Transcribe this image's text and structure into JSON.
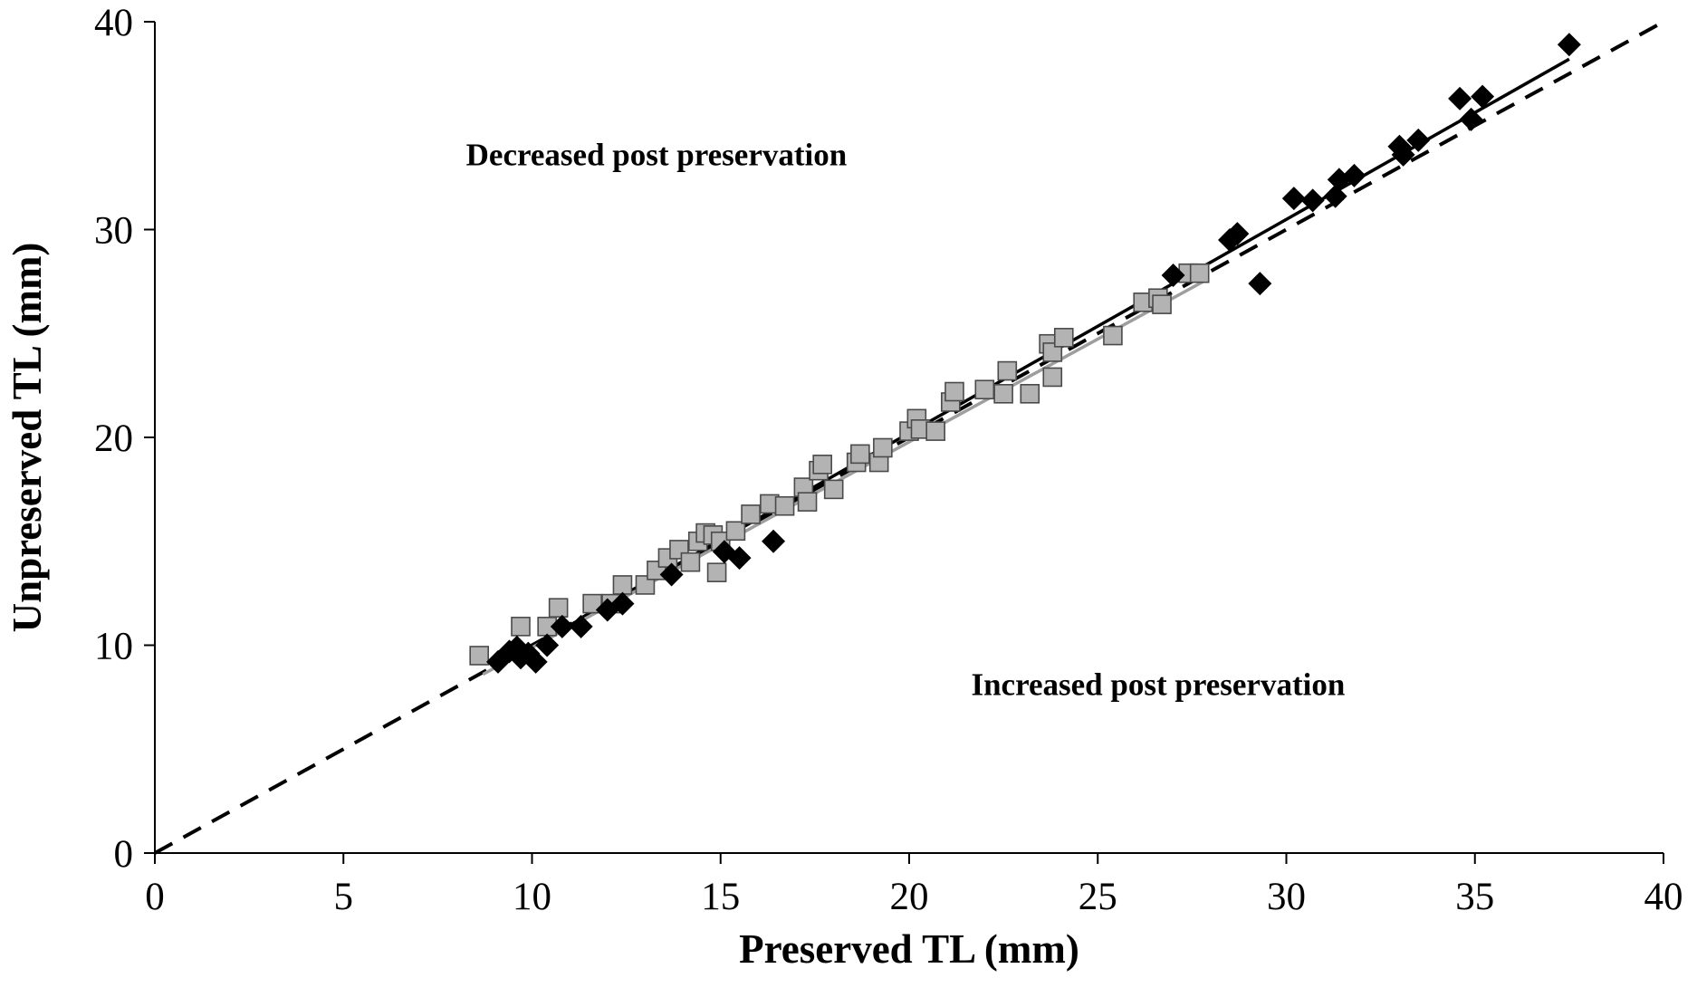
{
  "chart_data": {
    "type": "scatter",
    "xlabel": "Preserved TL (mm)",
    "ylabel": "Unpreserved TL (mm)",
    "xlim": [
      0,
      40
    ],
    "ylim": [
      0,
      40
    ],
    "xticks": [
      "0",
      "5",
      "10",
      "15",
      "20",
      "25",
      "30",
      "35",
      "40"
    ],
    "yticks": [
      "0",
      "10",
      "20",
      "30",
      "40"
    ],
    "grid": false,
    "legend": "none",
    "annotations": [
      {
        "text": "Decreased post preservation",
        "x": 13.3,
        "y": 33.1
      },
      {
        "text": "Increased post preservation",
        "x": 26.6,
        "y": 7.6
      }
    ],
    "series": [
      {
        "marker": "diamond",
        "color": "#000000",
        "points": [
          [
            9.1,
            9.2
          ],
          [
            9.4,
            9.7
          ],
          [
            9.6,
            9.9
          ],
          [
            9.7,
            9.4
          ],
          [
            9.9,
            9.6
          ],
          [
            10.1,
            9.2
          ],
          [
            10.4,
            10.0
          ],
          [
            10.8,
            10.9
          ],
          [
            11.3,
            10.9
          ],
          [
            12.0,
            11.7
          ],
          [
            12.4,
            12.0
          ],
          [
            13.7,
            13.4
          ],
          [
            15.1,
            14.5
          ],
          [
            15.5,
            14.2
          ],
          [
            16.4,
            15.0
          ],
          [
            27.0,
            27.8
          ],
          [
            28.5,
            29.5
          ],
          [
            28.7,
            29.8
          ],
          [
            29.3,
            27.4
          ],
          [
            30.2,
            31.5
          ],
          [
            30.7,
            31.4
          ],
          [
            31.3,
            31.6
          ],
          [
            31.4,
            32.4
          ],
          [
            31.8,
            32.6
          ],
          [
            33.0,
            34.0
          ],
          [
            33.1,
            33.6
          ],
          [
            33.5,
            34.3
          ],
          [
            34.6,
            36.3
          ],
          [
            34.9,
            35.3
          ],
          [
            35.2,
            36.4
          ],
          [
            37.5,
            38.9
          ]
        ]
      },
      {
        "marker": "square",
        "color": "#b3b3b3",
        "points": [
          [
            8.6,
            9.5
          ],
          [
            9.7,
            10.9
          ],
          [
            10.4,
            10.9
          ],
          [
            10.7,
            11.8
          ],
          [
            11.6,
            12.0
          ],
          [
            12.1,
            12.0
          ],
          [
            12.4,
            12.9
          ],
          [
            13.0,
            12.9
          ],
          [
            13.3,
            13.6
          ],
          [
            13.6,
            14.2
          ],
          [
            13.9,
            14.6
          ],
          [
            14.2,
            14.0
          ],
          [
            14.4,
            15.0
          ],
          [
            14.6,
            15.4
          ],
          [
            14.8,
            15.3
          ],
          [
            14.9,
            13.5
          ],
          [
            15.0,
            15.0
          ],
          [
            15.4,
            15.5
          ],
          [
            15.8,
            16.3
          ],
          [
            16.3,
            16.8
          ],
          [
            16.7,
            16.7
          ],
          [
            17.2,
            17.6
          ],
          [
            17.3,
            16.9
          ],
          [
            17.6,
            18.4
          ],
          [
            17.7,
            18.7
          ],
          [
            18.0,
            17.5
          ],
          [
            18.6,
            18.8
          ],
          [
            18.7,
            19.2
          ],
          [
            19.2,
            18.8
          ],
          [
            19.3,
            19.5
          ],
          [
            20.0,
            20.3
          ],
          [
            20.2,
            20.9
          ],
          [
            20.3,
            20.4
          ],
          [
            20.7,
            20.3
          ],
          [
            21.1,
            21.7
          ],
          [
            21.2,
            22.2
          ],
          [
            22.0,
            22.3
          ],
          [
            22.5,
            22.1
          ],
          [
            22.6,
            23.2
          ],
          [
            23.2,
            22.1
          ],
          [
            23.7,
            24.5
          ],
          [
            23.8,
            22.9
          ],
          [
            23.8,
            24.1
          ],
          [
            24.1,
            24.8
          ],
          [
            25.4,
            24.9
          ],
          [
            26.2,
            26.5
          ],
          [
            26.6,
            26.7
          ],
          [
            26.7,
            26.4
          ],
          [
            27.4,
            27.9
          ],
          [
            27.7,
            27.9
          ]
        ]
      }
    ],
    "lines": [
      {
        "style": "dashed",
        "color": "#000000",
        "x": [
          0,
          40
        ],
        "y": [
          0,
          40
        ]
      },
      {
        "style": "solid",
        "color": "#000000",
        "x": [
          9.0,
          37.5
        ],
        "y": [
          8.9,
          38.2
        ]
      },
      {
        "style": "solid",
        "color": "#9e9e9e",
        "x": [
          8.7,
          27.8
        ],
        "y": [
          8.6,
          27.5
        ]
      }
    ]
  }
}
